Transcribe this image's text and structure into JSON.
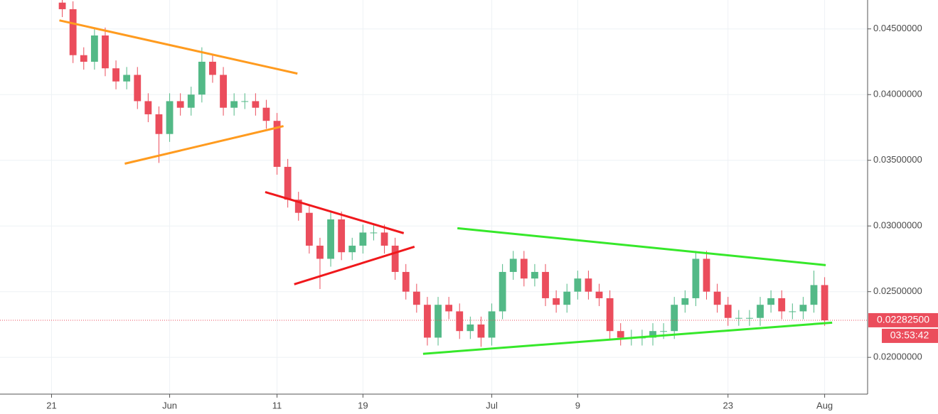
{
  "chart_data": {
    "type": "candlestick",
    "x": [
      1,
      2,
      3,
      4,
      5,
      6,
      7,
      8,
      9,
      10,
      11,
      12,
      13,
      14,
      15,
      16,
      17,
      18,
      19,
      20,
      21,
      22,
      23,
      24,
      25,
      26,
      27,
      28,
      29,
      30,
      31,
      32,
      33,
      34,
      35,
      36,
      37,
      38,
      39,
      40,
      41,
      42,
      43,
      44,
      45,
      46,
      47,
      48,
      49,
      50,
      51,
      52,
      53,
      54,
      55,
      56,
      57,
      58,
      59,
      60,
      61,
      62,
      63,
      64,
      65,
      66,
      67,
      68,
      69,
      70,
      71,
      72
    ],
    "open": [
      0.047,
      0.0465,
      0.043,
      0.0425,
      0.0445,
      0.042,
      0.041,
      0.0415,
      0.0395,
      0.0385,
      0.037,
      0.0395,
      0.039,
      0.04,
      0.0425,
      0.0415,
      0.039,
      0.0395,
      0.0395,
      0.039,
      0.038,
      0.0345,
      0.032,
      0.031,
      0.0285,
      0.0275,
      0.0305,
      0.028,
      0.0285,
      0.0295,
      0.0295,
      0.0285,
      0.0265,
      0.025,
      0.024,
      0.0215,
      0.024,
      0.0235,
      0.022,
      0.0225,
      0.0215,
      0.0235,
      0.0265,
      0.0275,
      0.026,
      0.0265,
      0.0245,
      0.024,
      0.025,
      0.026,
      0.025,
      0.0245,
      0.022,
      0.0215,
      0.0215,
      0.0215,
      0.022,
      0.022,
      0.024,
      0.0245,
      0.0275,
      0.025,
      0.024,
      0.023,
      0.023,
      0.023,
      0.024,
      0.0245,
      0.0235,
      0.0235,
      0.024,
      0.0255
    ],
    "high": [
      0.0472,
      0.0471,
      0.0436,
      0.0451,
      0.0451,
      0.0426,
      0.0421,
      0.0421,
      0.0401,
      0.0391,
      0.0401,
      0.0401,
      0.0406,
      0.0436,
      0.0431,
      0.0421,
      0.0401,
      0.0401,
      0.0401,
      0.0396,
      0.0386,
      0.0351,
      0.0326,
      0.0316,
      0.0291,
      0.0311,
      0.0311,
      0.0291,
      0.0301,
      0.0301,
      0.0301,
      0.0291,
      0.0271,
      0.0256,
      0.0246,
      0.0246,
      0.0246,
      0.0241,
      0.0231,
      0.0231,
      0.0241,
      0.0271,
      0.0281,
      0.0281,
      0.0271,
      0.0271,
      0.0251,
      0.0256,
      0.0266,
      0.0266,
      0.0256,
      0.0251,
      0.0226,
      0.0221,
      0.0221,
      0.0226,
      0.0226,
      0.0246,
      0.0251,
      0.0281,
      0.0281,
      0.0256,
      0.0246,
      0.0236,
      0.0236,
      0.0246,
      0.0251,
      0.0251,
      0.0241,
      0.0246,
      0.0266,
      0.0261
    ],
    "low": [
      0.0459,
      0.0424,
      0.0419,
      0.0419,
      0.0414,
      0.0404,
      0.0404,
      0.0389,
      0.0379,
      0.0348,
      0.0364,
      0.0384,
      0.0384,
      0.0394,
      0.0409,
      0.0384,
      0.0384,
      0.0389,
      0.0384,
      0.0374,
      0.0339,
      0.0314,
      0.0304,
      0.0279,
      0.0252,
      0.0269,
      0.0274,
      0.0274,
      0.0279,
      0.0289,
      0.0279,
      0.0259,
      0.0244,
      0.0234,
      0.0209,
      0.0209,
      0.0229,
      0.0214,
      0.0214,
      0.0208,
      0.0209,
      0.0229,
      0.0259,
      0.0254,
      0.0254,
      0.0239,
      0.0234,
      0.0234,
      0.0244,
      0.0244,
      0.0239,
      0.0214,
      0.0209,
      0.0209,
      0.0209,
      0.0209,
      0.0214,
      0.0214,
      0.0234,
      0.0239,
      0.0244,
      0.0234,
      0.0224,
      0.0224,
      0.0224,
      0.0224,
      0.0234,
      0.0229,
      0.0229,
      0.0229,
      0.0234,
      0.0224
    ],
    "close": [
      0.0465,
      0.043,
      0.0425,
      0.0445,
      0.042,
      0.041,
      0.0415,
      0.0395,
      0.0385,
      0.037,
      0.0395,
      0.039,
      0.04,
      0.0425,
      0.0415,
      0.039,
      0.0395,
      0.0395,
      0.039,
      0.038,
      0.0345,
      0.032,
      0.031,
      0.0285,
      0.0275,
      0.0305,
      0.028,
      0.0285,
      0.0295,
      0.0295,
      0.0285,
      0.0265,
      0.025,
      0.024,
      0.0215,
      0.024,
      0.0235,
      0.022,
      0.0225,
      0.0215,
      0.0235,
      0.0265,
      0.0275,
      0.026,
      0.0265,
      0.0245,
      0.024,
      0.025,
      0.026,
      0.025,
      0.0245,
      0.022,
      0.0215,
      0.0215,
      0.0215,
      0.022,
      0.022,
      0.024,
      0.0245,
      0.0275,
      0.025,
      0.024,
      0.023,
      0.023,
      0.023,
      0.024,
      0.0245,
      0.0235,
      0.0235,
      0.024,
      0.0255,
      0.02282
    ],
    "up_color": "#53b987",
    "down_color": "#eb4d5c",
    "xlim": [
      -4.8,
      76
    ],
    "xticks": [
      {
        "value": 0,
        "label": "21"
      },
      {
        "value": 11,
        "label": "Jun"
      },
      {
        "value": 21,
        "label": "11"
      },
      {
        "value": 29,
        "label": "19"
      },
      {
        "value": 41,
        "label": "Jul"
      },
      {
        "value": 49,
        "label": "9"
      },
      {
        "value": 63,
        "label": "23"
      },
      {
        "value": 72,
        "label": "Aug"
      }
    ],
    "ylim": [
      0.0172,
      0.0472
    ],
    "yticks": [
      {
        "value": 0.02,
        "label": "0.02000000"
      },
      {
        "value": 0.025,
        "label": "0.02500000"
      },
      {
        "value": 0.03,
        "label": "0.03000000"
      },
      {
        "value": 0.035,
        "label": "0.03500000"
      },
      {
        "value": 0.04,
        "label": "0.04000000"
      },
      {
        "value": 0.045,
        "label": "0.04500000"
      }
    ],
    "grid": true,
    "trendlines": [
      {
        "color": "#ff9b1f",
        "x": [
          0.73,
          22.9
        ],
        "y": [
          0.04565,
          0.0416
        ]
      },
      {
        "color": "#ff9b1f",
        "x": [
          6.82,
          21.6
        ],
        "y": [
          0.03474,
          0.0376
        ]
      },
      {
        "color": "#f0181c",
        "x": [
          19.9,
          32.8
        ],
        "y": [
          0.03258,
          0.02945
        ]
      },
      {
        "color": "#f0181c",
        "x": [
          22.6,
          33.8
        ],
        "y": [
          0.02556,
          0.02842
        ]
      },
      {
        "color": "#36e82a",
        "x": [
          37.8,
          72.1
        ],
        "y": [
          0.02983,
          0.02702
        ]
      },
      {
        "color": "#36e82a",
        "x": [
          34.6,
          72.7
        ],
        "y": [
          0.02027,
          0.02264
        ]
      }
    ],
    "last_price": {
      "value": 0.022825,
      "label": "0.02282500",
      "color": "#eb4d5c"
    },
    "countdown": "03:53:42"
  }
}
